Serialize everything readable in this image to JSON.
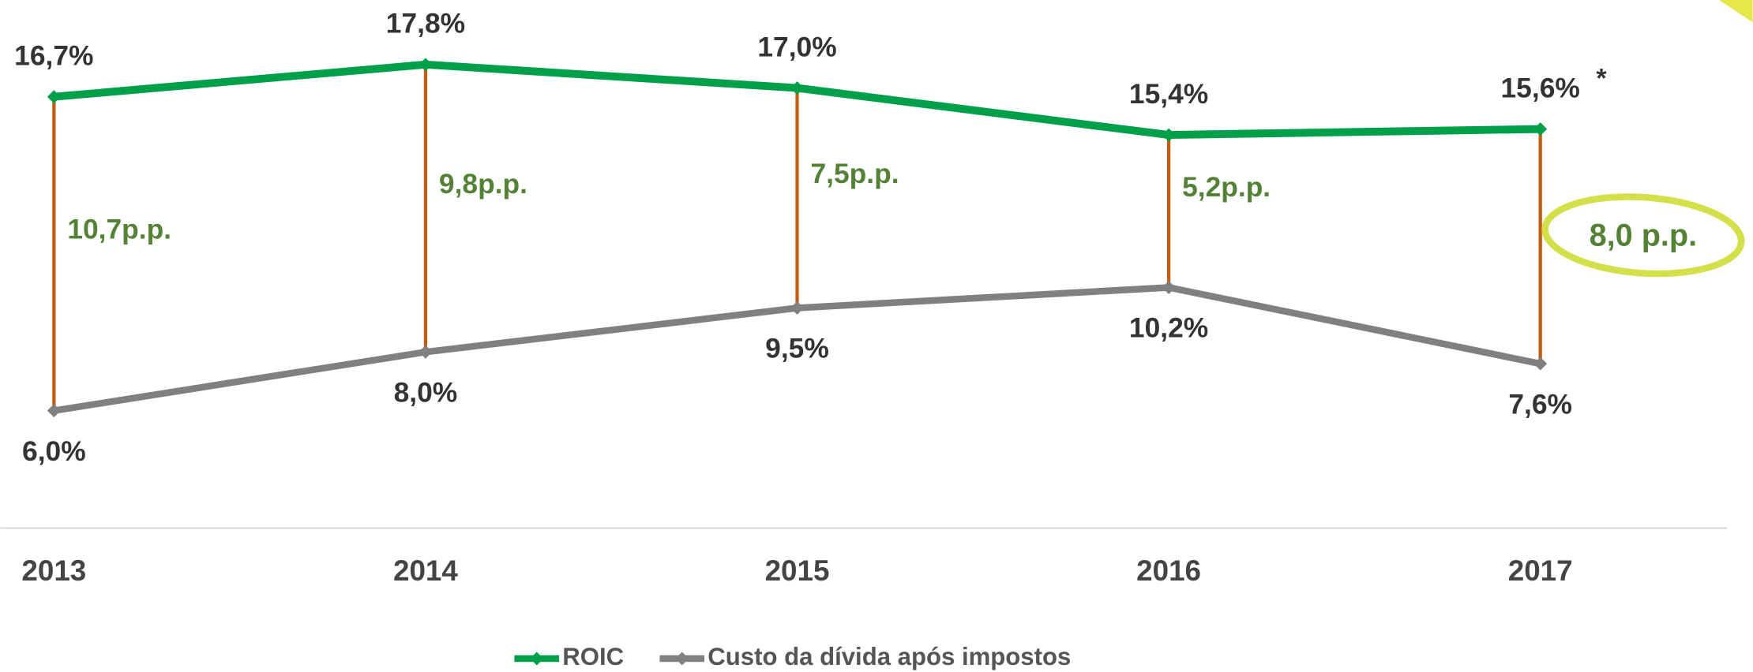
{
  "chart_data": {
    "type": "line",
    "categories": [
      "2013",
      "2014",
      "2015",
      "2016",
      "2017"
    ],
    "series": [
      {
        "name": "ROIC",
        "color": "#00a04a",
        "values": [
          16.7,
          17.8,
          17.0,
          15.4,
          15.6
        ],
        "value_labels": [
          "16,7%",
          "17,8%",
          "17,0%",
          "15,4%",
          "15,6%"
        ]
      },
      {
        "name": "Custo da dívida após impostos",
        "color": "#808080",
        "values": [
          6.0,
          8.0,
          9.5,
          10.2,
          7.6
        ],
        "value_labels": [
          "6,0%",
          "8,0%",
          "9,5%",
          "10,2%",
          "7,6%"
        ]
      }
    ],
    "spreads": {
      "color": "#c55a11",
      "values": [
        10.7,
        9.8,
        7.5,
        5.2,
        8.0
      ],
      "value_labels": [
        "10,7p.p.",
        "9,8p.p.",
        "7,5p.p.",
        "5,2p.p.",
        "8,0 p.p."
      ]
    },
    "annotation": "*",
    "ylim": [
      2,
      20
    ]
  }
}
